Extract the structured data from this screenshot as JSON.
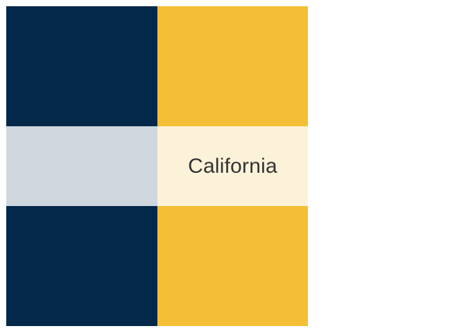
{
  "swatches": {
    "navy": "#03284a",
    "gold": "#f4bf35",
    "grey": "#cfd6de",
    "cream": "#fcf2d9"
  },
  "label": "California"
}
